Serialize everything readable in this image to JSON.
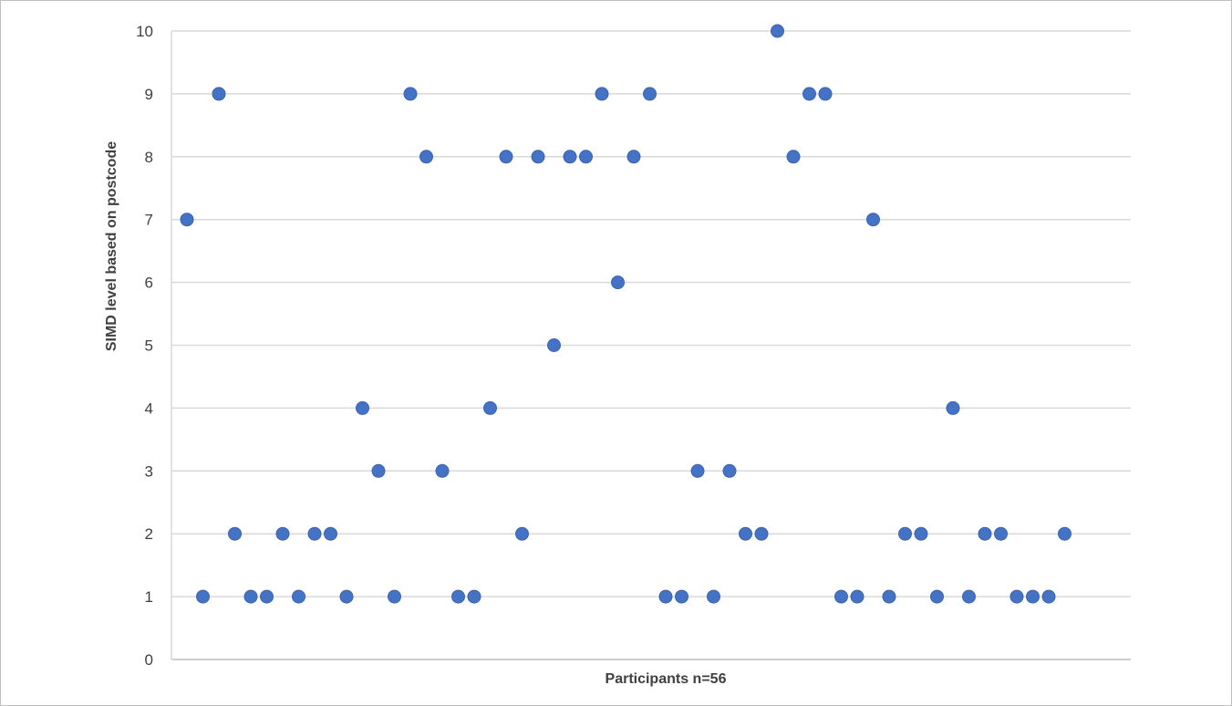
{
  "chart_data": {
    "type": "scatter",
    "title": "",
    "xlabel": "Participants n=56",
    "ylabel": "SIMD level based on postcode",
    "ylim": [
      0,
      10
    ],
    "yticks": [
      "0",
      "1",
      "2",
      "3",
      "4",
      "5",
      "6",
      "7",
      "8",
      "9",
      "10"
    ],
    "grid": true,
    "marker_color": "#4472c4",
    "grid_color": "#d9d9d9",
    "x": [
      1,
      2,
      3,
      4,
      5,
      6,
      7,
      8,
      9,
      10,
      11,
      12,
      13,
      14,
      15,
      16,
      17,
      18,
      19,
      20,
      21,
      22,
      23,
      24,
      25,
      26,
      27,
      28,
      29,
      30,
      31,
      32,
      33,
      34,
      35,
      36,
      37,
      38,
      39,
      40,
      41,
      42,
      43,
      44,
      45,
      46,
      47,
      48,
      49,
      50,
      51,
      52,
      53,
      54,
      55,
      56
    ],
    "values": [
      7,
      1,
      9,
      2,
      1,
      1,
      2,
      1,
      2,
      2,
      1,
      4,
      3,
      1,
      9,
      8,
      3,
      1,
      1,
      4,
      8,
      2,
      8,
      5,
      8,
      8,
      9,
      6,
      8,
      9,
      1,
      1,
      3,
      1,
      3,
      2,
      2,
      10,
      8,
      9,
      9,
      1,
      1,
      7,
      1,
      2,
      2,
      1,
      4,
      1,
      2,
      2,
      1,
      1,
      1,
      2
    ]
  }
}
